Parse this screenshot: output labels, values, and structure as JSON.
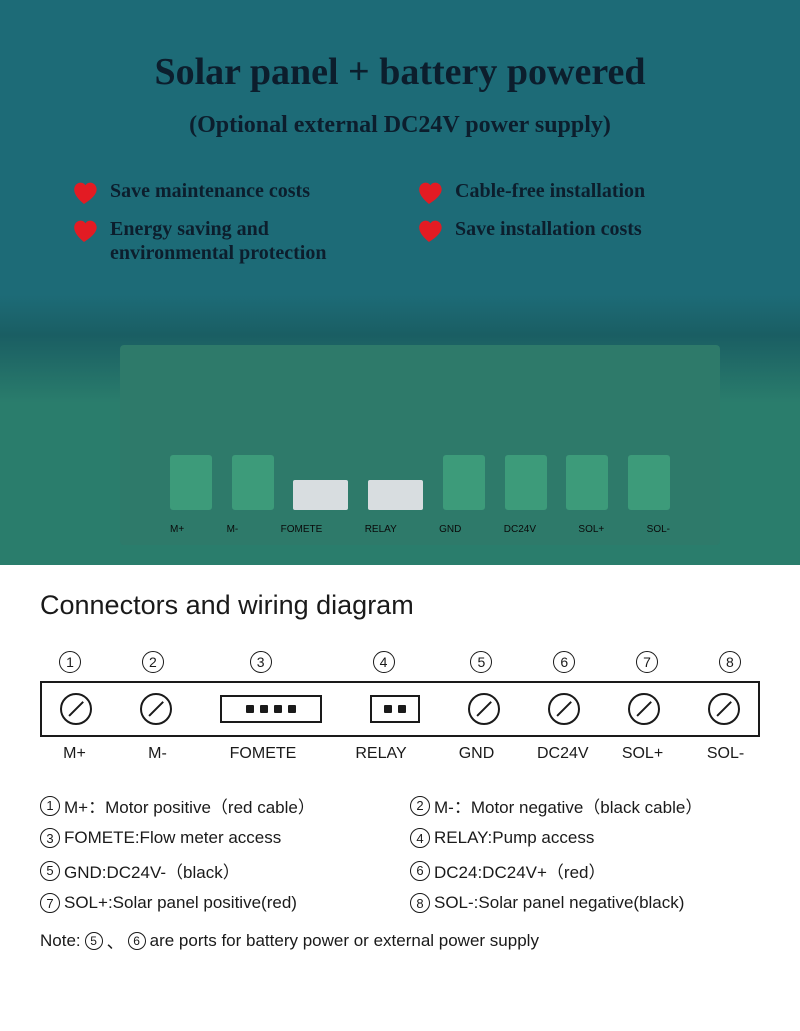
{
  "header": {
    "title": "Solar panel + battery powered",
    "subtitle": "(Optional external DC24V power supply)"
  },
  "features": [
    {
      "icon": "heart",
      "text": "Save maintenance costs"
    },
    {
      "icon": "heart",
      "text": "Cable-free installation"
    },
    {
      "icon": "heart",
      "text": "Energy saving and environmental protection"
    },
    {
      "icon": "heart",
      "text": "Save installation costs"
    }
  ],
  "colors": {
    "background_teal": "#1d6b77",
    "heart_red": "#e31b23",
    "text_dark": "#0c1e2d",
    "pcb_green": "#2e7a6a",
    "terminal_green": "#3d9b7a",
    "diagram_bg": "#ffffff",
    "diagram_text": "#1a1a1a"
  },
  "pcb": {
    "labels": [
      "M+",
      "M-",
      "FOMETE",
      "RELAY",
      "GND",
      "DC24V",
      "SOL+",
      "SOL-"
    ]
  },
  "diagram": {
    "title": "Connectors and wiring diagram",
    "connectors": [
      {
        "num": "1",
        "type": "screw",
        "label": "M+"
      },
      {
        "num": "2",
        "type": "screw",
        "label": "M-"
      },
      {
        "num": "3",
        "type": "pin4",
        "label": "FOMETE"
      },
      {
        "num": "4",
        "type": "pin2",
        "label": "RELAY"
      },
      {
        "num": "5",
        "type": "screw",
        "label": "GND"
      },
      {
        "num": "6",
        "type": "screw",
        "label": "DC24V"
      },
      {
        "num": "7",
        "type": "screw",
        "label": "SOL+"
      },
      {
        "num": "8",
        "type": "screw",
        "label": "SOL-"
      }
    ],
    "legend": [
      {
        "num": "1",
        "text": "M+：Motor positive（red cable）"
      },
      {
        "num": "2",
        "text": "M-：Motor negative（black cable）"
      },
      {
        "num": "3",
        "text": "FOMETE:Flow meter access"
      },
      {
        "num": "4",
        "text": "RELAY:Pump access"
      },
      {
        "num": "5",
        "text": "GND:DC24V-（black）"
      },
      {
        "num": "6",
        "text": "DC24:DC24V+（red）"
      },
      {
        "num": "7",
        "text": "SOL+:Solar panel positive(red)"
      },
      {
        "num": "8",
        "text": "SOL-:Solar panel negative(black)"
      }
    ],
    "note": {
      "prefix": "Note:",
      "nums": [
        "5",
        "6"
      ],
      "separator": "、",
      "suffix": "are ports for battery power or external power supply"
    }
  }
}
